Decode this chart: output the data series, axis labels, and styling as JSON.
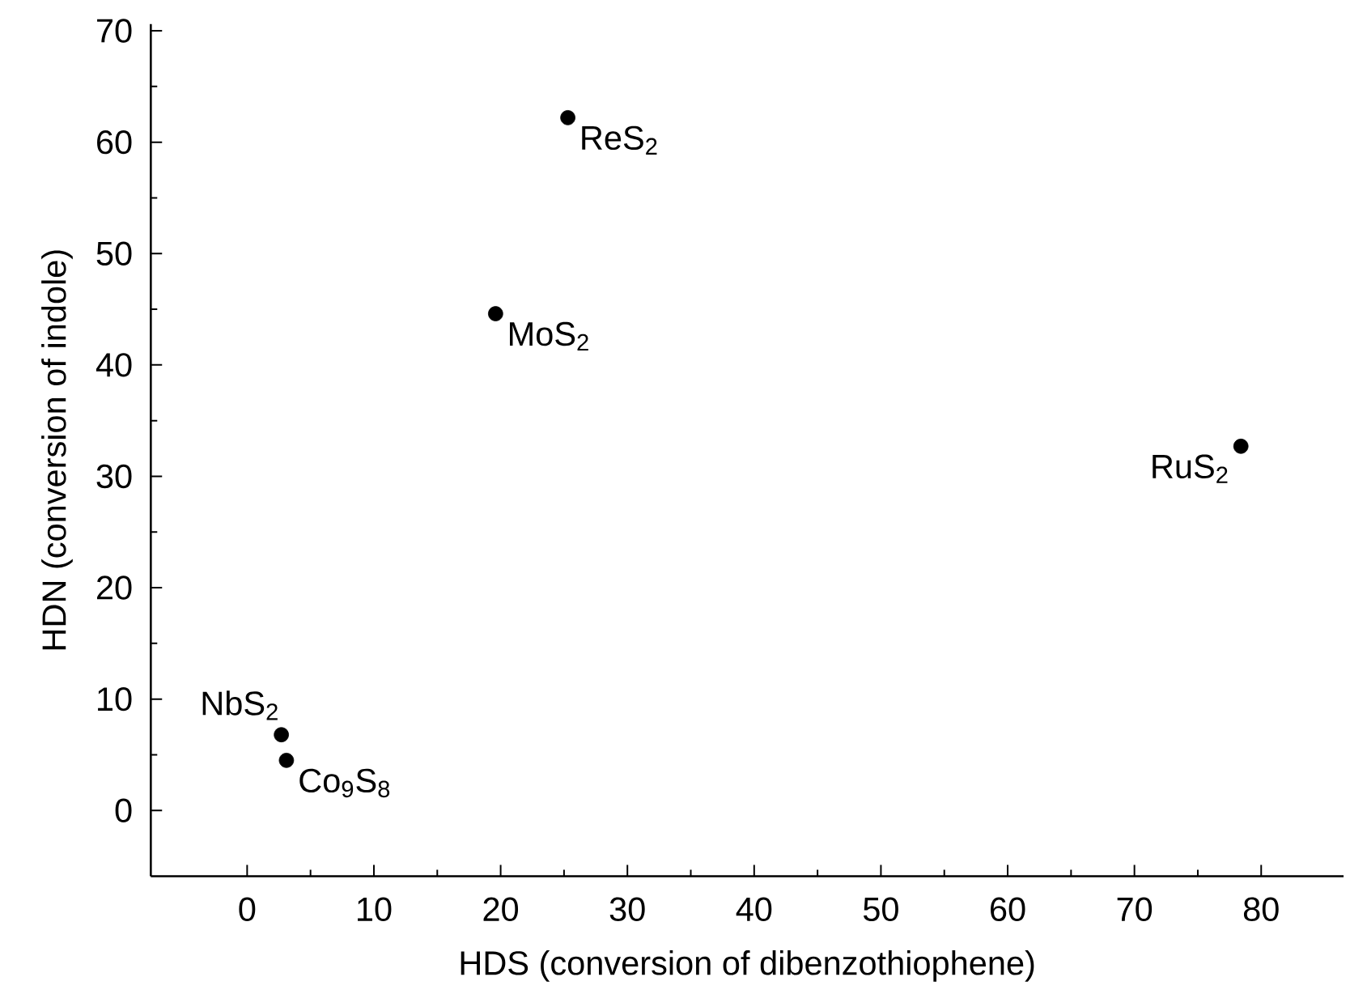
{
  "chart_data": {
    "type": "scatter",
    "xlabel": "HDS (conversion of dibenzothiophene)",
    "ylabel": "HDN (conversion of indole)",
    "x": [
      25.3,
      19.6,
      78.4,
      2.7,
      3.1
    ],
    "values": [
      62.2,
      44.6,
      32.7,
      6.8,
      4.5
    ],
    "color": "#000000",
    "marker": "circle",
    "xlim": [
      -7.6,
      86.5
    ],
    "ylim": [
      -5.9,
      70.6
    ],
    "xticks": [
      0,
      10,
      20,
      30,
      40,
      50,
      60,
      70,
      80
    ],
    "yticks": [
      0,
      10,
      20,
      30,
      40,
      50,
      60,
      70
    ],
    "grid": false,
    "annotations": [
      {
        "text": "ReS$_{2}$",
        "x": 25.3,
        "y": 62.2
      },
      {
        "text": "MoS$_{2}$",
        "x": 19.6,
        "y": 44.6
      },
      {
        "text": "RuS$_{2}$",
        "x": 78.4,
        "y": 32.7
      },
      {
        "text": "NbS$_{2}$",
        "x": 2.7,
        "y": 6.8
      },
      {
        "text": "Co$_{9}$S$_{8}$",
        "x": 3.1,
        "y": 4.5
      }
    ]
  }
}
